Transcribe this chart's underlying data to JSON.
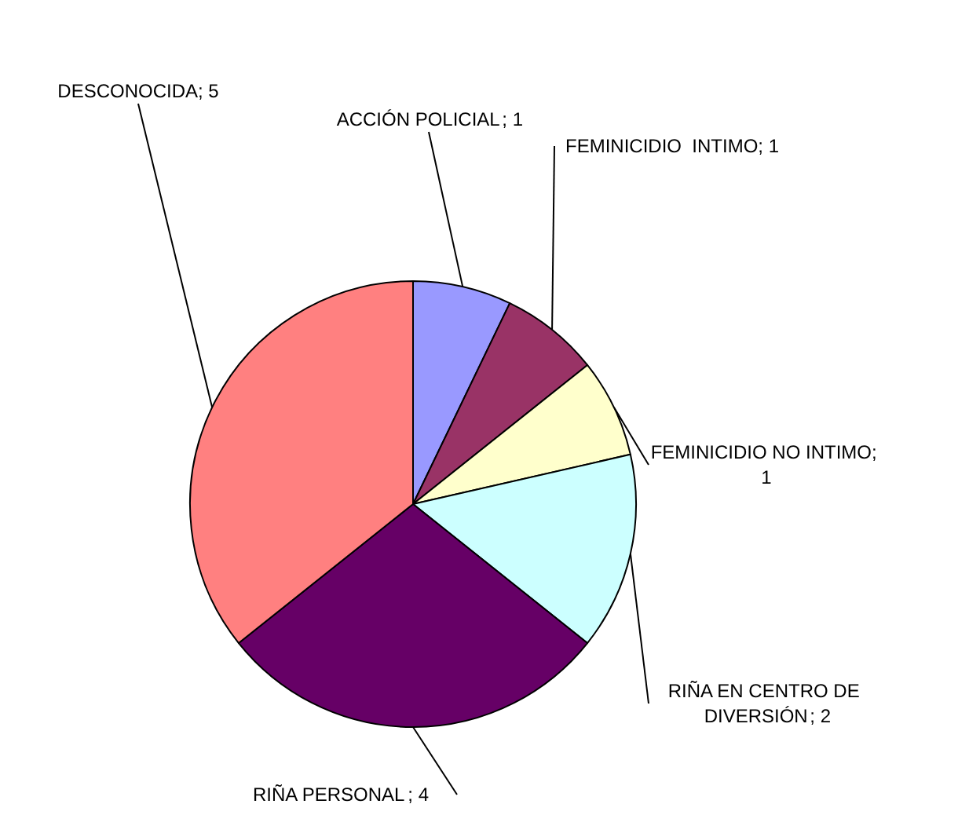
{
  "chart_data": {
    "type": "pie",
    "categories": [
      "ACCIÓN POLICIAL",
      "FEMINICIDIO  INTIMO",
      "FEMINICIDIO NO INTIMO",
      "RIÑA EN CENTRO DE DIVERSIÓN",
      "RIÑA PERSONAL",
      "DESCONOCIDA"
    ],
    "values": [
      1,
      1,
      1,
      2,
      4,
      5
    ],
    "colors": [
      "#9999ff",
      "#993366",
      "#ffffcc",
      "#ccffff",
      "#660066",
      "#ff8080"
    ],
    "value_labels": [
      "; 1",
      "; 1",
      "; 1",
      "; 2",
      "; 4",
      "; 5"
    ],
    "legend": false
  }
}
